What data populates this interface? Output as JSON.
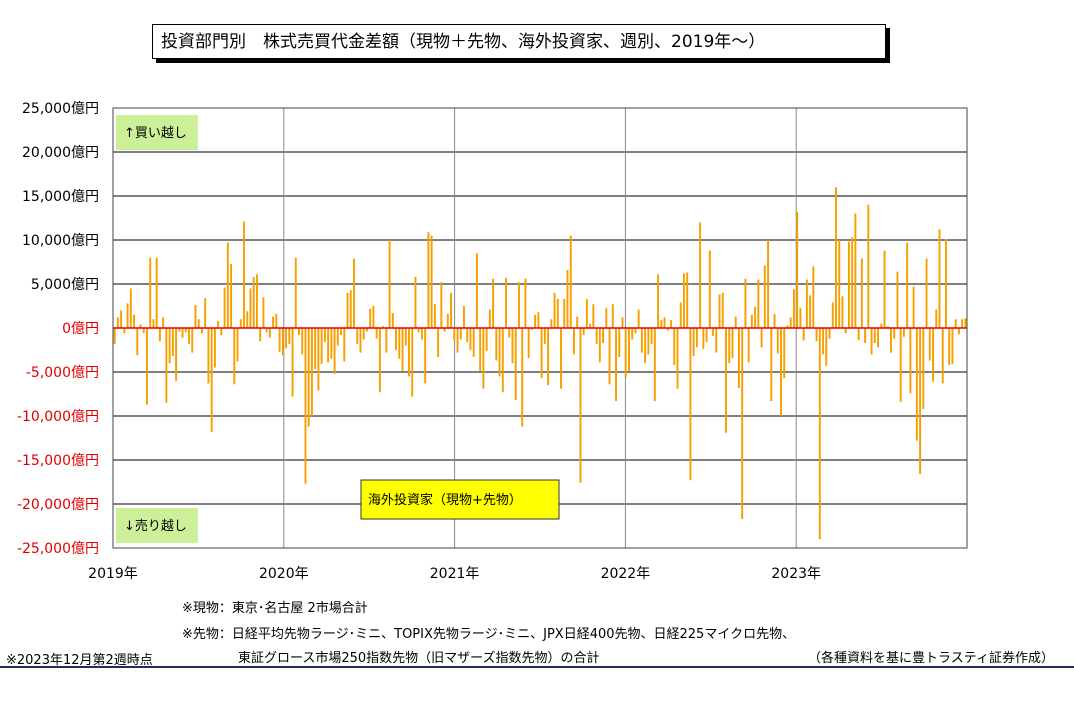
{
  "title": "投資部門別　株式売買代金差額（現物＋先物、海外投資家、週別、2019年～）",
  "chart_data": {
    "type": "bar",
    "series": [
      {
        "name": "海外投資家（現物+先物）",
        "color": "#f5a000"
      }
    ],
    "ylim": [
      -25000,
      25000
    ],
    "yticks": [
      "25,000億円",
      "20,000億円",
      "15,000億円",
      "10,000億円",
      "5,000億円",
      "0億円",
      "-5,000億円",
      "-10,000億円",
      "-15,000億円",
      "-20,000億円",
      "-25,000億円"
    ],
    "xticks": [
      "2019年",
      "2020年",
      "2021年",
      "2022年",
      "2023年"
    ],
    "x_start": "2019-01",
    "x_end": "2023-12",
    "annotations": {
      "buy": "↑買い越し",
      "sell": "↓売り越し",
      "series_label": "海外投資家（現物+先物）"
    },
    "values": [
      -1800,
      1200,
      2000,
      -600,
      2800,
      4500,
      1500,
      -3100,
      400,
      -600,
      -8700,
      8000,
      1000,
      8000,
      -1500,
      1200,
      -8500,
      -4000,
      -3200,
      -6000,
      -400,
      -1100,
      -500,
      -1800,
      -2800,
      2600,
      1000,
      -600,
      3400,
      -6300,
      -11800,
      -4500,
      800,
      -800,
      4600,
      9700,
      7300,
      -6400,
      -3800,
      1000,
      12100,
      1900,
      4500,
      5800,
      6100,
      -1500,
      3500,
      -500,
      -1100,
      1300,
      1600,
      -2700,
      -3100,
      -2300,
      -1800,
      -7800,
      8000,
      -800,
      -3000,
      -17700,
      -11200,
      -10000,
      -4700,
      -7100,
      -4100,
      -1600,
      -3900,
      -3500,
      -5200,
      -2000,
      -800,
      -3800,
      4000,
      4300,
      7900,
      -1800,
      -2800,
      -1300,
      -400,
      2200,
      2500,
      -1200,
      -7300,
      200,
      -2800,
      10000,
      1700,
      -2500,
      -3500,
      -4900,
      -2000,
      -5500,
      -7800,
      5800,
      -500,
      -1300,
      -6300,
      10900,
      10500,
      2700,
      -3300,
      5200,
      -400,
      1600,
      4000,
      -1400,
      -2800,
      -1300,
      2500,
      -1600,
      -2500,
      -3300,
      8500,
      -4900,
      -6900,
      -2600,
      2100,
      5600,
      -3700,
      -5500,
      -7300,
      5700,
      -1100,
      -4000,
      -8200,
      5200,
      -11200,
      5600,
      -3400,
      -200,
      1500,
      1800,
      -5700,
      -1800,
      -6500,
      1000,
      4000,
      3300,
      -6900,
      3300,
      6600,
      10500,
      -3000,
      1300,
      -17600,
      -800,
      3300,
      500,
      2700,
      -1800,
      -3900,
      -1700,
      2300,
      -6400,
      2700,
      -8300,
      -3300,
      1200,
      -5600,
      -4900,
      -1300,
      -600,
      2100,
      -2800,
      -4000,
      -3000,
      -1800,
      -8300,
      6100,
      900,
      1200,
      -300,
      900,
      -4200,
      -6900,
      2900,
      6200,
      6300,
      -17300,
      -3200,
      -2200,
      12000,
      -2400,
      -1600,
      8800,
      -900,
      -2800,
      3800,
      4000,
      -11900,
      -4000,
      -3400,
      1300,
      -6800,
      -21700,
      5600,
      -3900,
      1500,
      2400,
      5500,
      -2200,
      7100,
      10000,
      -8300,
      1600,
      -2900,
      -10000,
      -5700,
      300,
      1200,
      4400,
      13200,
      2300,
      -1400,
      5500,
      3700,
      7000,
      -1500,
      -24000,
      -3000,
      -4300,
      -1200,
      2900,
      16000,
      10000,
      3600,
      -600,
      9800,
      10300,
      13000,
      -1400,
      7900,
      -1700,
      14000,
      -3000,
      -1700,
      -2200,
      500,
      8800,
      200,
      -2800,
      -1200,
      6400,
      -8400,
      -1000,
      9700,
      -7400,
      4700,
      -12800,
      -16600,
      -9200,
      7900,
      -3700,
      -6100,
      2100,
      11200,
      -6300,
      10100,
      -4200,
      -4100,
      1000,
      -700,
      1000,
      1100
    ]
  },
  "notes": {
    "genbutsu": "※現物：東京･名古屋 2市場合計",
    "sakimono_1": "※先物：日経平均先物ラージ･ミニ、TOPIX先物ラージ･ミニ、JPX日経400先物、日経225マイクロ先物、",
    "sakimono_2": "東証グロース市場250指数先物（旧マザーズ指数先物）の合計",
    "as_of": "※2023年12月第2週時点",
    "source": "（各種資料を基に豊トラスティ証券作成）"
  }
}
